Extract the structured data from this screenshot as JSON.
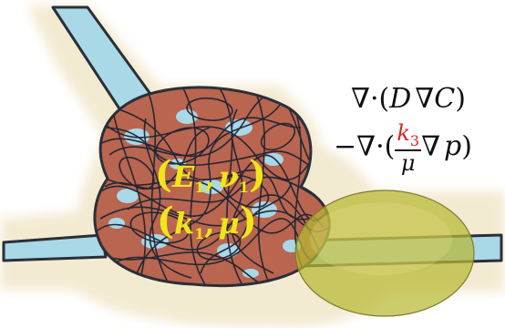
{
  "labels": {
    "param_line1": {
      "open": "(",
      "E": "E",
      "sub1": "1",
      "comma": ",",
      "nu": "ν",
      "sub2": "1",
      "close": ")"
    },
    "param_line2": {
      "open": "(",
      "k": "k",
      "sub1": "1",
      "comma": ",",
      "mu": "μ",
      "close": ")"
    }
  },
  "equations": {
    "line1": {
      "nabla": "∇",
      "dot": "·",
      "open": "(",
      "D": "D",
      "nabla2": "∇",
      "C": "C",
      "close": ")"
    },
    "line2": {
      "minus": "−",
      "nabla": "∇",
      "dot": "·",
      "open": "(",
      "k": "k",
      "sub": "3",
      "mu": "μ",
      "nabla2": "∇",
      "p": "p",
      "close": ")"
    }
  },
  "colors": {
    "background_halo": "#f3ead2",
    "channel": "#a9d8e6",
    "tissue": "#b9654f",
    "fiber": "#1d2433",
    "outline": "#2b2f38",
    "ellipse": "#b7b832",
    "param_text": "#f1e51a",
    "k3_red": "#e0201c"
  }
}
